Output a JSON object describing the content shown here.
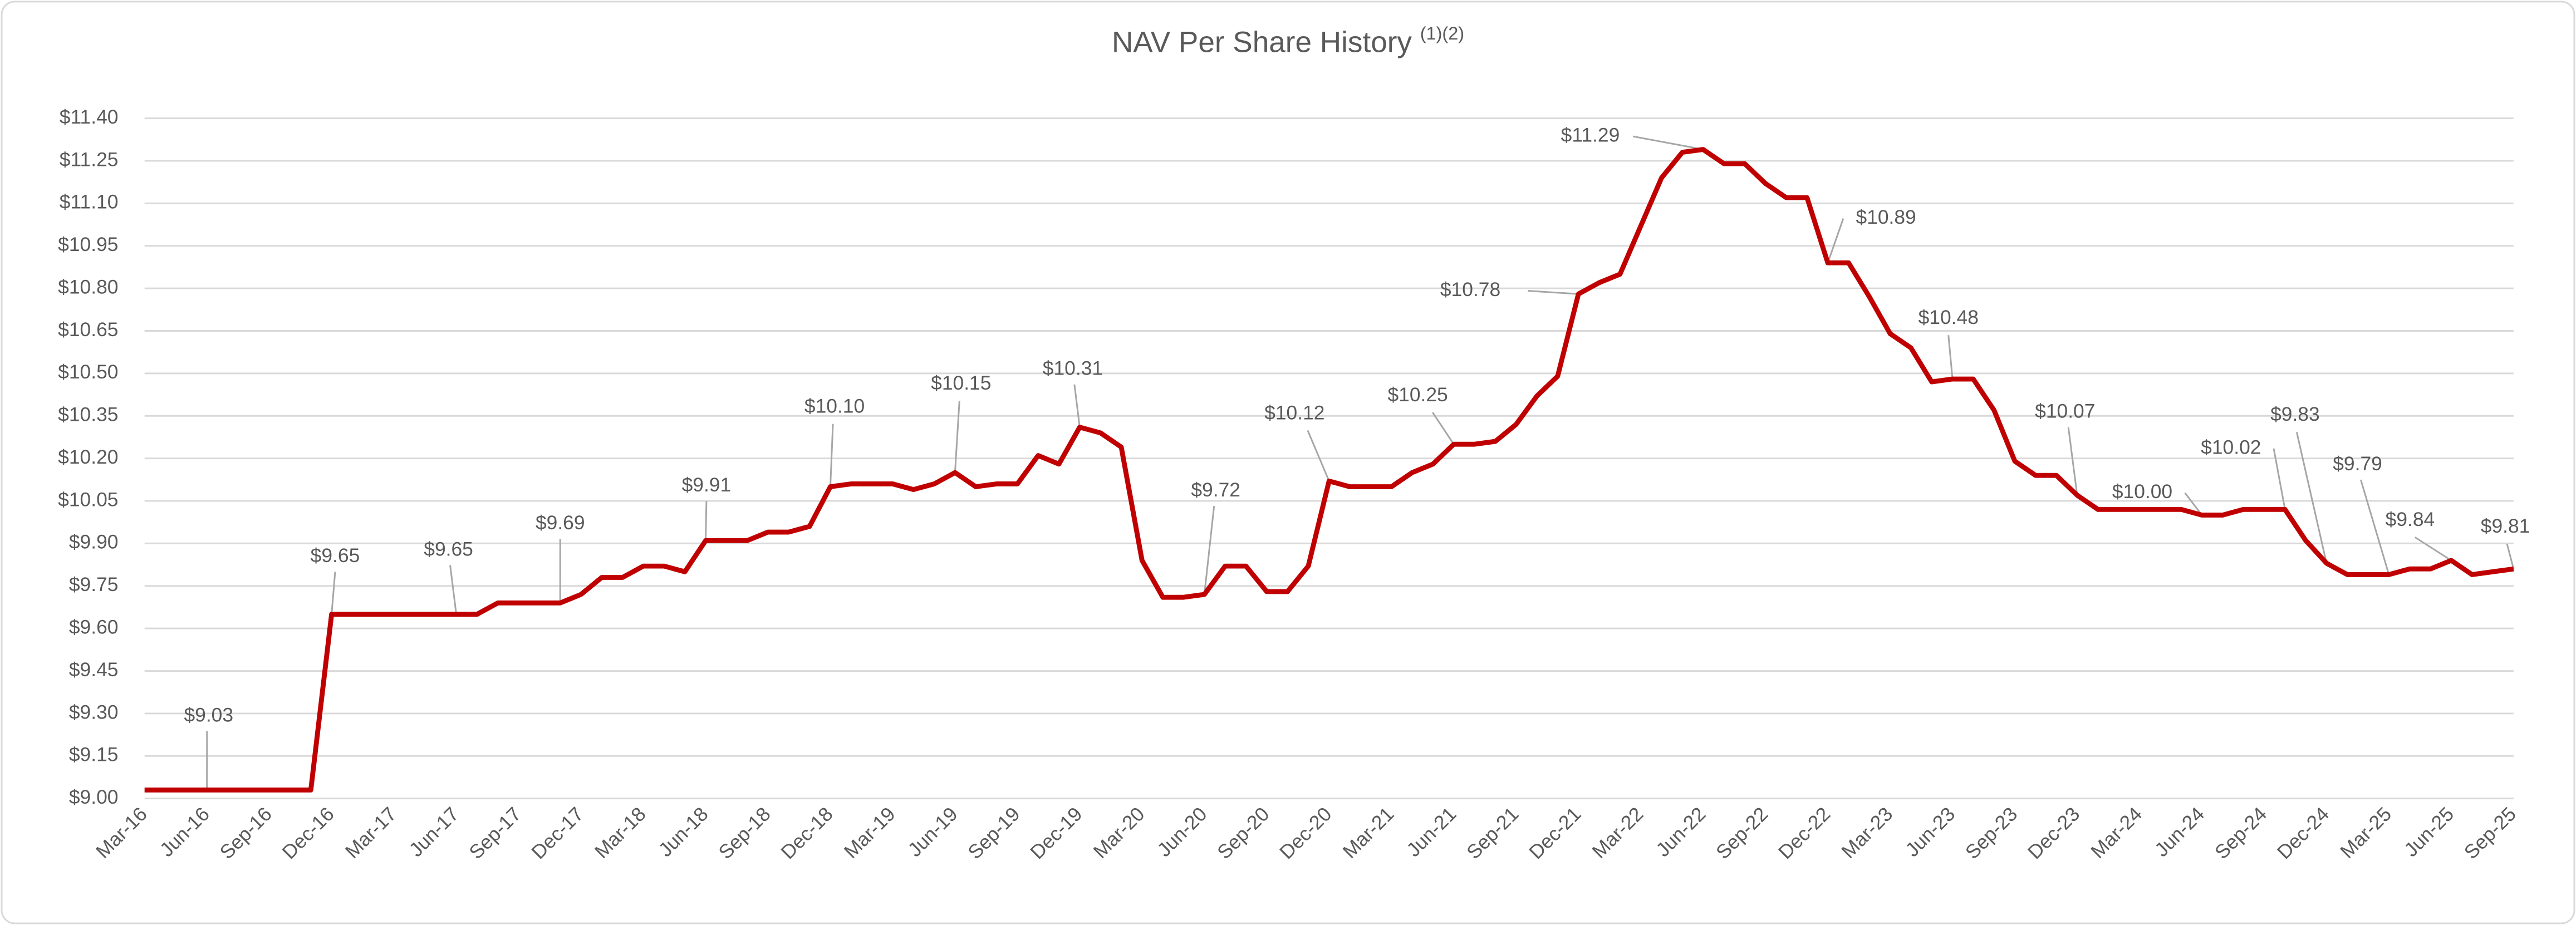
{
  "chart_data": {
    "type": "line",
    "title": "NAV Per Share History",
    "title_note": "(1)(2)",
    "categories": [
      "Mar-16",
      null,
      null,
      "Jun-16",
      null,
      null,
      "Sep-16",
      null,
      null,
      "Dec-16",
      null,
      null,
      "Mar-17",
      null,
      null,
      "Jun-17",
      null,
      null,
      "Sep-17",
      null,
      null,
      "Dec-17",
      null,
      null,
      "Mar-18",
      null,
      null,
      "Jun-18",
      null,
      null,
      "Sep-18",
      null,
      null,
      "Dec-18",
      null,
      null,
      "Mar-19",
      null,
      null,
      "Jun-19",
      null,
      null,
      "Sep-19",
      null,
      null,
      "Dec-19",
      null,
      null,
      "Mar-20",
      null,
      null,
      "Jun-20",
      null,
      null,
      "Sep-20",
      null,
      null,
      "Dec-20",
      null,
      null,
      "Mar-21",
      null,
      null,
      "Jun-21",
      null,
      null,
      "Sep-21",
      null,
      null,
      "Dec-21",
      null,
      null,
      "Mar-22",
      null,
      null,
      "Jun-22",
      null,
      null,
      "Sep-22",
      null,
      null,
      "Dec-22",
      null,
      null,
      "Mar-23",
      null,
      null,
      "Jun-23",
      null,
      null,
      "Sep-23",
      null,
      null,
      "Dec-23",
      null,
      null,
      "Mar-24",
      null,
      null,
      "Jun-24",
      null,
      null,
      "Sep-24",
      null,
      null,
      "Dec-24",
      null,
      null,
      "Mar-25",
      null,
      null,
      "Jun-25",
      null,
      null,
      "Sep-25"
    ],
    "series": [
      {
        "name": "NAV Per Share",
        "color": "#c00000",
        "values": [
          9.03,
          9.03,
          9.03,
          9.03,
          9.03,
          9.03,
          9.03,
          9.03,
          9.03,
          9.65,
          9.65,
          9.65,
          9.65,
          9.65,
          9.65,
          9.65,
          9.65,
          9.69,
          9.69,
          9.69,
          9.69,
          9.72,
          9.78,
          9.78,
          9.82,
          9.82,
          9.8,
          9.91,
          9.91,
          9.91,
          9.94,
          9.94,
          9.96,
          10.1,
          10.11,
          10.11,
          10.11,
          10.09,
          10.11,
          10.15,
          10.1,
          10.11,
          10.11,
          10.21,
          10.18,
          10.31,
          10.29,
          10.24,
          9.84,
          9.71,
          9.71,
          9.72,
          9.82,
          9.82,
          9.73,
          9.73,
          9.82,
          10.12,
          10.1,
          10.1,
          10.1,
          10.15,
          10.18,
          10.25,
          10.25,
          10.26,
          10.32,
          10.42,
          10.49,
          10.78,
          10.82,
          10.85,
          11.02,
          11.19,
          11.28,
          11.29,
          11.24,
          11.24,
          11.17,
          11.12,
          11.12,
          10.89,
          10.89,
          10.77,
          10.64,
          10.59,
          10.47,
          10.48,
          10.48,
          10.37,
          10.19,
          10.14,
          10.14,
          10.07,
          10.02,
          10.02,
          10.02,
          10.02,
          10.02,
          10.0,
          10.0,
          10.02,
          10.02,
          10.02,
          9.91,
          9.83,
          9.79,
          9.79,
          9.79,
          9.81,
          9.81,
          9.84,
          9.79,
          9.8,
          9.81
        ],
        "value_labels": [
          null,
          null,
          null,
          "$9.03",
          null,
          null,
          null,
          null,
          null,
          "$9.65",
          null,
          null,
          null,
          null,
          null,
          "$9.65",
          null,
          null,
          null,
          null,
          "$9.69",
          null,
          null,
          null,
          null,
          null,
          null,
          "$9.91",
          null,
          null,
          null,
          null,
          null,
          "$10.10",
          null,
          null,
          null,
          null,
          null,
          "$10.15",
          null,
          null,
          null,
          null,
          null,
          "$10.31",
          null,
          null,
          null,
          null,
          null,
          "$9.72",
          null,
          null,
          null,
          null,
          null,
          "$10.12",
          null,
          null,
          null,
          null,
          null,
          "$10.25",
          null,
          null,
          null,
          null,
          null,
          "$10.78",
          null,
          null,
          null,
          null,
          null,
          "$11.29",
          null,
          null,
          null,
          null,
          null,
          "$10.89",
          null,
          null,
          null,
          null,
          null,
          "$10.48",
          null,
          null,
          null,
          null,
          null,
          "$10.07",
          null,
          null,
          null,
          null,
          null,
          "$10.00",
          null,
          null,
          null,
          "$10.02",
          null,
          "$9.83",
          null,
          null,
          "$9.79",
          null,
          null,
          "$9.84",
          null,
          null,
          "$9.81"
        ]
      }
    ],
    "ylim": [
      9.0,
      11.4
    ],
    "yticks": [
      {
        "value": 9.0,
        "label": "$9.00"
      },
      {
        "value": 9.15,
        "label": "$9.15"
      },
      {
        "value": 9.3,
        "label": "$9.30"
      },
      {
        "value": 9.45,
        "label": "$9.45"
      },
      {
        "value": 9.6,
        "label": "$9.60"
      },
      {
        "value": 9.75,
        "label": "$9.75"
      },
      {
        "value": 9.9,
        "label": "$9.90"
      },
      {
        "value": 10.05,
        "label": "$10.05"
      },
      {
        "value": 10.2,
        "label": "$10.20"
      },
      {
        "value": 10.35,
        "label": "$10.35"
      },
      {
        "value": 10.5,
        "label": "$10.50"
      },
      {
        "value": 10.65,
        "label": "$10.65"
      },
      {
        "value": 10.8,
        "label": "$10.80"
      },
      {
        "value": 10.95,
        "label": "$10.95"
      },
      {
        "value": 11.1,
        "label": "$11.10"
      },
      {
        "value": 11.25,
        "label": "$11.25"
      },
      {
        "value": 11.4,
        "label": "$11.40"
      }
    ],
    "grid": true
  }
}
